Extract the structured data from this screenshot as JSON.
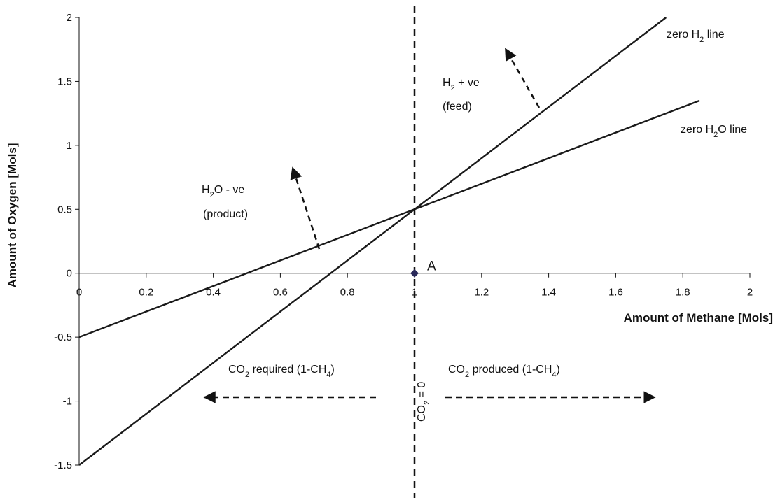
{
  "chart_data": {
    "type": "line",
    "title": "",
    "xlabel": "Amount of Methane [Mols]",
    "ylabel": "Amount of Oxygen [Mols]",
    "xlim": [
      0,
      2
    ],
    "ylim": [
      -1.5,
      2
    ],
    "xticks": [
      "0",
      "0.2",
      "0.4",
      "0.6",
      "0.8",
      "1",
      "1.2",
      "1.4",
      "1.6",
      "1.8",
      "2"
    ],
    "yticks": [
      "-1.5",
      "-1",
      "-0.5",
      "0",
      "0.5",
      "1",
      "1.5",
      "2"
    ],
    "grid": false,
    "legend": "none",
    "series": [
      {
        "name": "zero H2O line",
        "x": [
          0,
          0.5,
          1.0,
          1.5,
          1.85
        ],
        "y": [
          -0.5,
          0.0,
          0.5,
          1.0,
          1.35
        ]
      },
      {
        "name": "zero H2 line",
        "x": [
          0,
          0.75,
          1.0,
          1.5,
          1.75
        ],
        "y": [
          -1.5,
          0.0,
          0.5,
          1.5,
          2.0
        ]
      }
    ],
    "vertical_line": {
      "x": 1,
      "label": "CO₂ = 0"
    },
    "points": [
      {
        "x": 1,
        "y": 0,
        "label": "A"
      }
    ],
    "annotations": {
      "zero_h2_label": {
        "pre": "zero H",
        "sub": "2",
        "post": " line"
      },
      "zero_h2o_label": {
        "pre": "zero H",
        "sub": "2",
        "post": "O line"
      },
      "h2_feed_l1": {
        "pre": "H",
        "sub": "2",
        "post": " + ve"
      },
      "h2_feed_l2": "(feed)",
      "h2o_product_l1": {
        "pre": "H",
        "sub": "2",
        "post": "O - ve"
      },
      "h2o_product_l2": "(product)",
      "co2_required": {
        "pre": "CO",
        "sub": "2",
        "mid": " required (1-CH",
        "sub2": "4",
        "post": ")"
      },
      "co2_produced": {
        "pre": "CO",
        "sub": "2",
        "mid": " produced (1-CH",
        "sub2": "4",
        "post": ")"
      },
      "co2_zero": {
        "pre": "CO",
        "sub": "2",
        "post": " = 0"
      }
    }
  }
}
